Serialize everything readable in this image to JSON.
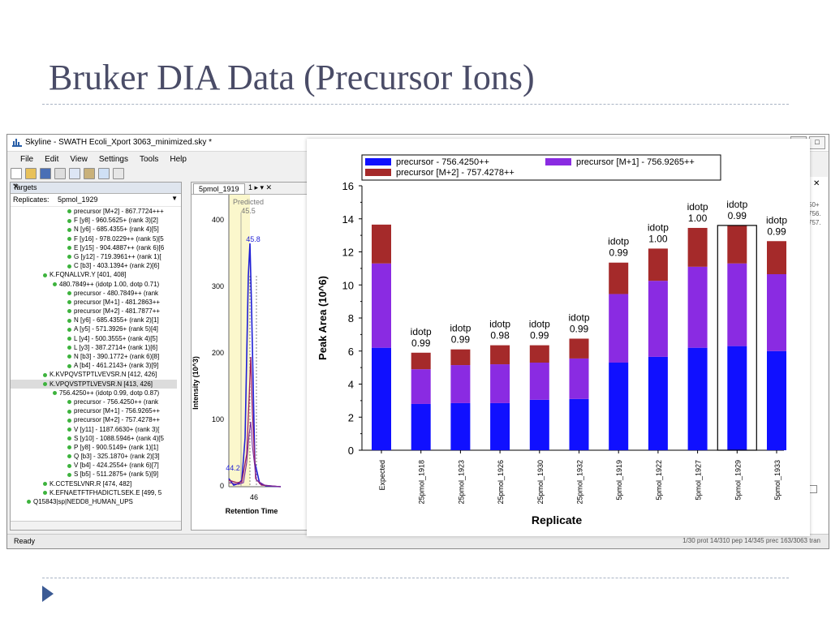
{
  "slide": {
    "title": "Bruker DIA Data (Precursor Ions)"
  },
  "window": {
    "title": "Skyline - SWATH Ecoli_Xport 3063_minimized.sky *",
    "menu": [
      "File",
      "Edit",
      "View",
      "Settings",
      "Tools",
      "Help"
    ],
    "status": "Ready",
    "status_right": "1/30 prot     14/310 pep     14/345 prec     163/3063 tran"
  },
  "targets": {
    "header": "Targets",
    "replicates_label": "Replicates:",
    "replicate_value": "5pmol_1929",
    "items": [
      "precursor [M+2] - 867.7724+++",
      "F [y8] - 960.5625+ (rank 3)[2]",
      "N [y6] - 685.4355+ (rank 4)[5]",
      "F [y16] - 978.0229++ (rank 5)[5",
      "E [y15] - 904.4887++ (rank 6)[6",
      "G [y12] - 719.3961++ (rank 1)[",
      "C [b3] - 403.1394+ (rank 2)[6]",
      "K.FQNALLVR.Y [401, 408]",
      "480.7849++ (idotp 1.00, dotp 0.71)",
      "precursor - 480.7849++ (rank",
      "precursor [M+1] - 481.2863++",
      "precursor [M+2] - 481.7877++",
      "N [y6] - 685.4355+ (rank 2)[1]",
      "A [y5] - 571.3926+ (rank 5)[4]",
      "L [y4] - 500.3555+ (rank 4)[5]",
      "L [y3] - 387.2714+ (rank 1)[6]",
      "N [b3] - 390.1772+ (rank 6)[8]",
      "A [b4] - 461.2143+ (rank 3)[9]",
      "K.KVPQVSTPTLVEVSR.N [412, 426]",
      "K.VPQVSTPTLVEVSR.N [413, 426]",
      "756.4250++ (idotp 0.99, dotp 0.87)",
      "precursor - 756.4250++ (rank",
      "precursor [M+1] - 756.9265++",
      "precursor [M+2] - 757.4278++",
      "V [y11] - 1187.6630+ (rank 3)[",
      "S [y10] - 1088.5946+ (rank 4)[5",
      "P [y8] - 900.5149+ (rank 1)[1]",
      "Q [b3] - 325.1870+ (rank 2)[3]",
      "V [b4] - 424.2554+ (rank 6)[7]",
      "S [b5] - 511.2875+ (rank 5)[9]",
      "K.CCTESLVNR.R [474, 482]",
      "K.EFNAETFTFHADICTLSEK.E [499, 5",
      "Q15843|sp|NEDD8_HUMAN_UPS"
    ]
  },
  "chromatogram": {
    "tab": "5pmol_1919",
    "tab_controls": "1 ▸ ▾ ✕",
    "y_label": "Intensity (10^3)",
    "x_label": "Retention Time",
    "y_ticks": [
      "0",
      "100",
      "200",
      "300",
      "400"
    ],
    "x_tick": "46",
    "predicted_label": "Predicted",
    "predicted_value": "45.5",
    "peak_label": "45.8",
    "minor_label": "44.2",
    "series_colors": [
      "#1f1fd6",
      "#a02060",
      "#7a2aa0"
    ]
  },
  "tab2": "5p",
  "right_strip": {
    "texts": [
      "50+",
      "756.",
      "757."
    ],
    "close": "✕"
  },
  "chart_data": {
    "type": "bar",
    "stacked": true,
    "xlabel": "Replicate",
    "ylabel": "Peak Area (10^6)",
    "ylim": [
      0,
      16
    ],
    "y_ticks": [
      0,
      2,
      4,
      6,
      8,
      10,
      12,
      14,
      16
    ],
    "categories": [
      "Expected",
      "25pmol_1918",
      "25pmol_1923",
      "25pmol_1926",
      "25pmol_1930",
      "25pmol_1932",
      "5pmol_1919",
      "5pmol_1922",
      "5pmol_1927",
      "5pmol_1929",
      "5pmol_1933"
    ],
    "series": [
      {
        "name": "precursor - 756.4250++",
        "color": "#1010ff",
        "values": [
          6.2,
          2.8,
          2.85,
          2.85,
          3.05,
          3.1,
          5.3,
          5.65,
          6.2,
          6.3,
          6.0
        ]
      },
      {
        "name": "precursor [M+1] - 756.9265++",
        "color": "#8a2be2",
        "values": [
          5.1,
          2.1,
          2.3,
          2.35,
          2.25,
          2.45,
          4.15,
          4.6,
          4.9,
          5.0,
          4.65
        ]
      },
      {
        "name": "precursor [M+2] - 757.4278++",
        "color": "#a52a2a",
        "values": [
          2.35,
          1.0,
          0.95,
          1.15,
          1.05,
          1.2,
          1.9,
          1.95,
          2.35,
          2.3,
          2.0
        ]
      }
    ],
    "annotations": [
      null,
      {
        "l1": "idotp",
        "l2": "0.99"
      },
      {
        "l1": "idotp",
        "l2": "0.99"
      },
      {
        "l1": "idotp",
        "l2": "0.98"
      },
      {
        "l1": "idotp",
        "l2": "0.99"
      },
      {
        "l1": "idotp",
        "l2": "0.99"
      },
      {
        "l1": "idotp",
        "l2": "0.99"
      },
      {
        "l1": "idotp",
        "l2": "1.00"
      },
      {
        "l1": "idotp",
        "l2": "1.00"
      },
      {
        "l1": "idotp",
        "l2": "0.99"
      },
      {
        "l1": "idotp",
        "l2": "0.99"
      }
    ],
    "selected_category": "5pmol_1929",
    "legend_position": "top"
  }
}
